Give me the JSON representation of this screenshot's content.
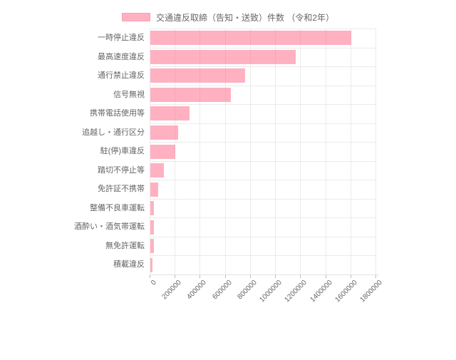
{
  "legend": {
    "label": "交通違反取締（告知・送致）件数 （令和2年）"
  },
  "colors": {
    "bar_fill": "rgba(255,99,132,0.5)",
    "bar_fill_solid_equivalent": "#ffb1c2",
    "legend_swatch_border": "#ff9cb2",
    "gridline": "#ebebeb",
    "axis_tick": "#b8b8b8",
    "label_text": "#666666"
  },
  "chart_data": {
    "type": "bar",
    "orientation": "horizontal",
    "title": "交通違反取締（告知・送致）件数 （令和2年）",
    "legend_position": "top",
    "grid": true,
    "xlabel": "",
    "ylabel": "",
    "xlim": [
      0,
      1800000
    ],
    "x_tick_step": 200000,
    "x_ticks": [
      0,
      200000,
      400000,
      600000,
      800000,
      1000000,
      1200000,
      1400000,
      1600000,
      1800000
    ],
    "categories": [
      "一時停止違反",
      "最高速度違反",
      "通行禁止違反",
      "信号無視",
      "携帯電話使用等",
      "追越し・通行区分",
      "駐(停)車違反",
      "踏切不停止等",
      "免許証不携帯",
      "整備不良車運転",
      "酒酔い・酒気帯運転",
      "無免許運転",
      "積載違反"
    ],
    "values": [
      1600000,
      1160000,
      755000,
      640000,
      315000,
      220000,
      196000,
      107000,
      60000,
      31000,
      30000,
      26000,
      18000
    ]
  }
}
